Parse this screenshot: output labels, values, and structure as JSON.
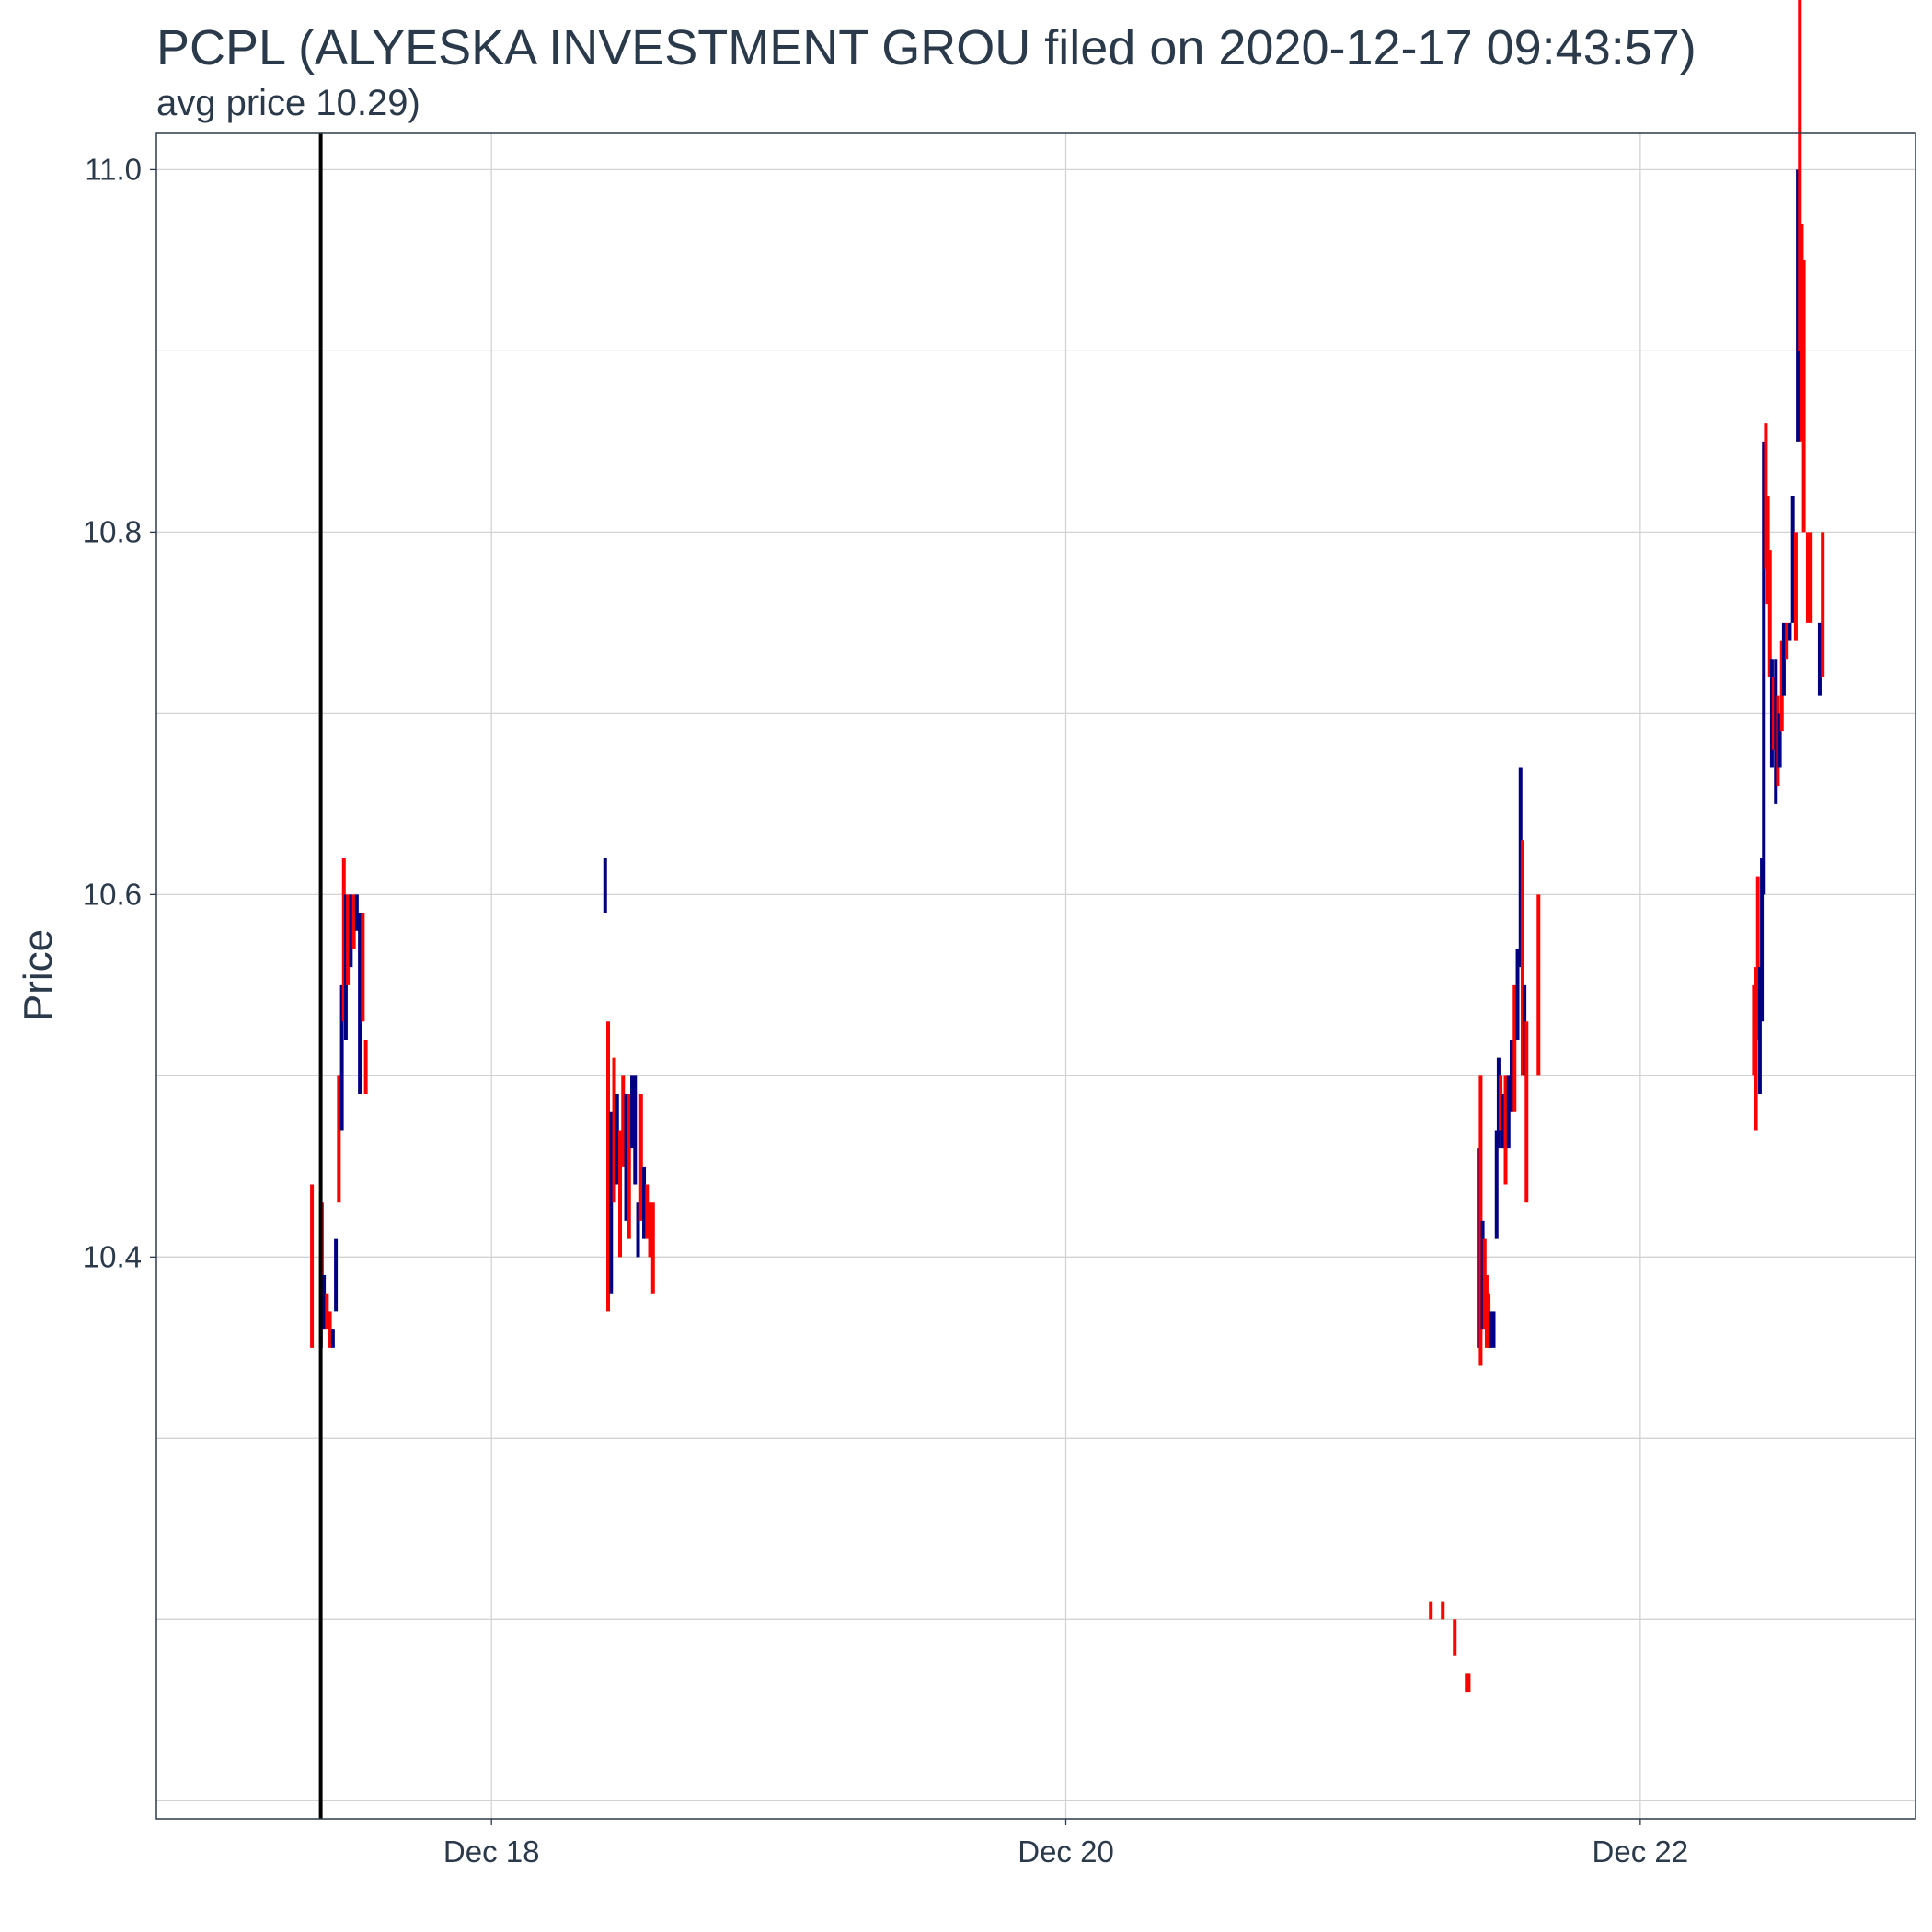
{
  "chart_data": {
    "type": "candlestick",
    "title": "PCPL (ALYESKA INVESTMENT GROU filed on 2020-12-17 09:43:57)",
    "subtitle": "avg price 10.29)",
    "xlabel": "",
    "ylabel": "Price",
    "x_axis": {
      "type": "date",
      "range": [
        "2020-12-16 20:00",
        "2020-12-22 23:00"
      ],
      "ticks": [
        {
          "date": "2020-12-18",
          "label": "Dec 18"
        },
        {
          "date": "2020-12-20",
          "label": "Dec 20"
        },
        {
          "date": "2020-12-22",
          "label": "Dec 22"
        }
      ]
    },
    "y_axis": {
      "range": [
        10.09,
        11.02
      ],
      "ticks": [
        10.4,
        10.6,
        10.8,
        11.0
      ],
      "tick_labels": [
        "10.4",
        "10.6",
        "10.8",
        "11.0"
      ]
    },
    "grid": true,
    "filing_line": "2020-12-17 09:43:57",
    "colors": {
      "up": "#000080",
      "down": "#ff0000",
      "filing_line": "#000000",
      "grid": "#d3d3d3",
      "frame": "#2b3a4a"
    },
    "candles": [
      {
        "t": "2020-12-17 09:00",
        "low": 10.35,
        "high": 10.44,
        "dir": "down"
      },
      {
        "t": "2020-12-17 09:45",
        "low": 10.35,
        "high": 10.41,
        "dir": "up"
      },
      {
        "t": "2020-12-17 09:50",
        "low": 10.36,
        "high": 10.43,
        "dir": "down"
      },
      {
        "t": "2020-12-17 10:00",
        "low": 10.36,
        "high": 10.39,
        "dir": "up"
      },
      {
        "t": "2020-12-17 10:15",
        "low": 10.36,
        "high": 10.38,
        "dir": "down"
      },
      {
        "t": "2020-12-17 10:30",
        "low": 10.35,
        "high": 10.37,
        "dir": "down"
      },
      {
        "t": "2020-12-17 10:45",
        "low": 10.35,
        "high": 10.36,
        "dir": "up"
      },
      {
        "t": "2020-12-17 11:00",
        "low": 10.37,
        "high": 10.41,
        "dir": "up"
      },
      {
        "t": "2020-12-17 11:15",
        "low": 10.43,
        "high": 10.5,
        "dir": "down"
      },
      {
        "t": "2020-12-17 11:30",
        "low": 10.47,
        "high": 10.55,
        "dir": "up"
      },
      {
        "t": "2020-12-17 11:40",
        "low": 10.53,
        "high": 10.62,
        "dir": "down"
      },
      {
        "t": "2020-12-17 11:50",
        "low": 10.52,
        "high": 10.6,
        "dir": "up"
      },
      {
        "t": "2020-12-17 12:00",
        "low": 10.55,
        "high": 10.6,
        "dir": "down"
      },
      {
        "t": "2020-12-17 12:15",
        "low": 10.56,
        "high": 10.6,
        "dir": "up"
      },
      {
        "t": "2020-12-17 12:30",
        "low": 10.57,
        "high": 10.6,
        "dir": "down"
      },
      {
        "t": "2020-12-17 12:45",
        "low": 10.58,
        "high": 10.6,
        "dir": "up"
      },
      {
        "t": "2020-12-17 13:00",
        "low": 10.49,
        "high": 10.59,
        "dir": "up"
      },
      {
        "t": "2020-12-17 13:15",
        "low": 10.53,
        "high": 10.59,
        "dir": "down"
      },
      {
        "t": "2020-12-17 13:30",
        "low": 10.49,
        "high": 10.52,
        "dir": "down"
      },
      {
        "t": "2020-12-18 09:30",
        "low": 10.59,
        "high": 10.62,
        "dir": "up"
      },
      {
        "t": "2020-12-18 09:45",
        "low": 10.37,
        "high": 10.53,
        "dir": "down"
      },
      {
        "t": "2020-12-18 10:00",
        "low": 10.38,
        "high": 10.48,
        "dir": "up"
      },
      {
        "t": "2020-12-18 10:15",
        "low": 10.43,
        "high": 10.51,
        "dir": "down"
      },
      {
        "t": "2020-12-18 10:30",
        "low": 10.44,
        "high": 10.49,
        "dir": "up"
      },
      {
        "t": "2020-12-18 10:45",
        "low": 10.4,
        "high": 10.47,
        "dir": "down"
      },
      {
        "t": "2020-12-18 11:00",
        "low": 10.45,
        "high": 10.5,
        "dir": "down"
      },
      {
        "t": "2020-12-18 11:15",
        "low": 10.42,
        "high": 10.49,
        "dir": "up"
      },
      {
        "t": "2020-12-18 11:30",
        "low": 10.41,
        "high": 10.49,
        "dir": "down"
      },
      {
        "t": "2020-12-18 11:45",
        "low": 10.46,
        "high": 10.5,
        "dir": "up"
      },
      {
        "t": "2020-12-18 12:00",
        "low": 10.44,
        "high": 10.5,
        "dir": "up"
      },
      {
        "t": "2020-12-18 12:15",
        "low": 10.4,
        "high": 10.43,
        "dir": "up"
      },
      {
        "t": "2020-12-18 12:30",
        "low": 10.42,
        "high": 10.49,
        "dir": "down"
      },
      {
        "t": "2020-12-18 12:45",
        "low": 10.41,
        "high": 10.45,
        "dir": "up"
      },
      {
        "t": "2020-12-18 13:00",
        "low": 10.41,
        "high": 10.44,
        "dir": "down"
      },
      {
        "t": "2020-12-18 13:15",
        "low": 10.4,
        "high": 10.43,
        "dir": "down"
      },
      {
        "t": "2020-12-18 13:30",
        "low": 10.38,
        "high": 10.43,
        "dir": "down"
      },
      {
        "t": "2020-12-21 06:30",
        "low": 10.2,
        "high": 10.21,
        "dir": "down"
      },
      {
        "t": "2020-12-21 07:30",
        "low": 10.2,
        "high": 10.21,
        "dir": "down"
      },
      {
        "t": "2020-12-21 08:30",
        "low": 10.18,
        "high": 10.2,
        "dir": "down"
      },
      {
        "t": "2020-12-21 09:30",
        "low": 10.16,
        "high": 10.17,
        "dir": "down"
      },
      {
        "t": "2020-12-21 09:40",
        "low": 10.16,
        "high": 10.17,
        "dir": "down"
      },
      {
        "t": "2020-12-21 10:30",
        "low": 10.35,
        "high": 10.46,
        "dir": "up"
      },
      {
        "t": "2020-12-21 10:40",
        "low": 10.34,
        "high": 10.5,
        "dir": "down"
      },
      {
        "t": "2020-12-21 10:50",
        "low": 10.36,
        "high": 10.42,
        "dir": "up"
      },
      {
        "t": "2020-12-21 11:00",
        "low": 10.36,
        "high": 10.41,
        "dir": "down"
      },
      {
        "t": "2020-12-21 11:10",
        "low": 10.35,
        "high": 10.39,
        "dir": "down"
      },
      {
        "t": "2020-12-21 11:20",
        "low": 10.35,
        "high": 10.38,
        "dir": "down"
      },
      {
        "t": "2020-12-21 11:30",
        "low": 10.35,
        "high": 10.37,
        "dir": "up"
      },
      {
        "t": "2020-12-21 11:45",
        "low": 10.35,
        "high": 10.37,
        "dir": "up"
      },
      {
        "t": "2020-12-21 12:00",
        "low": 10.41,
        "high": 10.47,
        "dir": "up"
      },
      {
        "t": "2020-12-21 12:10",
        "low": 10.46,
        "high": 10.51,
        "dir": "up"
      },
      {
        "t": "2020-12-21 12:20",
        "low": 10.47,
        "high": 10.5,
        "dir": "down"
      },
      {
        "t": "2020-12-21 12:30",
        "low": 10.46,
        "high": 10.49,
        "dir": "up"
      },
      {
        "t": "2020-12-21 12:45",
        "low": 10.44,
        "high": 10.5,
        "dir": "down"
      },
      {
        "t": "2020-12-21 13:00",
        "low": 10.46,
        "high": 10.5,
        "dir": "up"
      },
      {
        "t": "2020-12-21 13:15",
        "low": 10.48,
        "high": 10.52,
        "dir": "up"
      },
      {
        "t": "2020-12-21 13:30",
        "low": 10.48,
        "high": 10.55,
        "dir": "down"
      },
      {
        "t": "2020-12-21 13:45",
        "low": 10.52,
        "high": 10.57,
        "dir": "up"
      },
      {
        "t": "2020-12-21 14:00",
        "low": 10.56,
        "high": 10.67,
        "dir": "up"
      },
      {
        "t": "2020-12-21 14:10",
        "low": 10.5,
        "high": 10.63,
        "dir": "down"
      },
      {
        "t": "2020-12-21 14:20",
        "low": 10.5,
        "high": 10.55,
        "dir": "up"
      },
      {
        "t": "2020-12-21 14:30",
        "low": 10.43,
        "high": 10.53,
        "dir": "down"
      },
      {
        "t": "2020-12-21 15:30",
        "low": 10.5,
        "high": 10.6,
        "dir": "down"
      },
      {
        "t": "2020-12-22 09:30",
        "low": 10.5,
        "high": 10.55,
        "dir": "down"
      },
      {
        "t": "2020-12-22 09:40",
        "low": 10.47,
        "high": 10.56,
        "dir": "down"
      },
      {
        "t": "2020-12-22 09:50",
        "low": 10.52,
        "high": 10.61,
        "dir": "down"
      },
      {
        "t": "2020-12-22 10:00",
        "low": 10.49,
        "high": 10.56,
        "dir": "up"
      },
      {
        "t": "2020-12-22 10:10",
        "low": 10.53,
        "high": 10.62,
        "dir": "up"
      },
      {
        "t": "2020-12-22 10:20",
        "low": 10.6,
        "high": 10.85,
        "dir": "up"
      },
      {
        "t": "2020-12-22 10:30",
        "low": 10.78,
        "high": 10.86,
        "dir": "down"
      },
      {
        "t": "2020-12-22 10:40",
        "low": 10.76,
        "high": 10.82,
        "dir": "down"
      },
      {
        "t": "2020-12-22 10:50",
        "low": 10.72,
        "high": 10.79,
        "dir": "down"
      },
      {
        "t": "2020-12-22 11:00",
        "low": 10.67,
        "high": 10.73,
        "dir": "up"
      },
      {
        "t": "2020-12-22 11:10",
        "low": 10.68,
        "high": 10.72,
        "dir": "down"
      },
      {
        "t": "2020-12-22 11:20",
        "low": 10.65,
        "high": 10.73,
        "dir": "up"
      },
      {
        "t": "2020-12-22 11:30",
        "low": 10.66,
        "high": 10.71,
        "dir": "down"
      },
      {
        "t": "2020-12-22 11:40",
        "low": 10.67,
        "high": 10.7,
        "dir": "up"
      },
      {
        "t": "2020-12-22 11:50",
        "low": 10.69,
        "high": 10.74,
        "dir": "down"
      },
      {
        "t": "2020-12-22 12:00",
        "low": 10.71,
        "high": 10.75,
        "dir": "up"
      },
      {
        "t": "2020-12-22 12:15",
        "low": 10.73,
        "high": 10.75,
        "dir": "down"
      },
      {
        "t": "2020-12-22 12:30",
        "low": 10.74,
        "high": 10.75,
        "dir": "up"
      },
      {
        "t": "2020-12-22 12:45",
        "low": 10.75,
        "high": 10.82,
        "dir": "up"
      },
      {
        "t": "2020-12-22 13:00",
        "low": 10.74,
        "high": 10.8,
        "dir": "down"
      },
      {
        "t": "2020-12-22 13:10",
        "low": 10.85,
        "high": 11.0,
        "dir": "up"
      },
      {
        "t": "2020-12-22 13:20",
        "low": 10.9,
        "high": 11.1,
        "dir": "down"
      },
      {
        "t": "2020-12-22 13:30",
        "low": 10.85,
        "high": 10.97,
        "dir": "down"
      },
      {
        "t": "2020-12-22 13:40",
        "low": 10.8,
        "high": 10.95,
        "dir": "down"
      },
      {
        "t": "2020-12-22 14:00",
        "low": 10.75,
        "high": 10.8,
        "dir": "down"
      },
      {
        "t": "2020-12-22 14:15",
        "low": 10.75,
        "high": 10.8,
        "dir": "down"
      },
      {
        "t": "2020-12-22 15:00",
        "low": 10.71,
        "high": 10.75,
        "dir": "up"
      },
      {
        "t": "2020-12-22 15:15",
        "low": 10.72,
        "high": 10.8,
        "dir": "down"
      }
    ]
  }
}
